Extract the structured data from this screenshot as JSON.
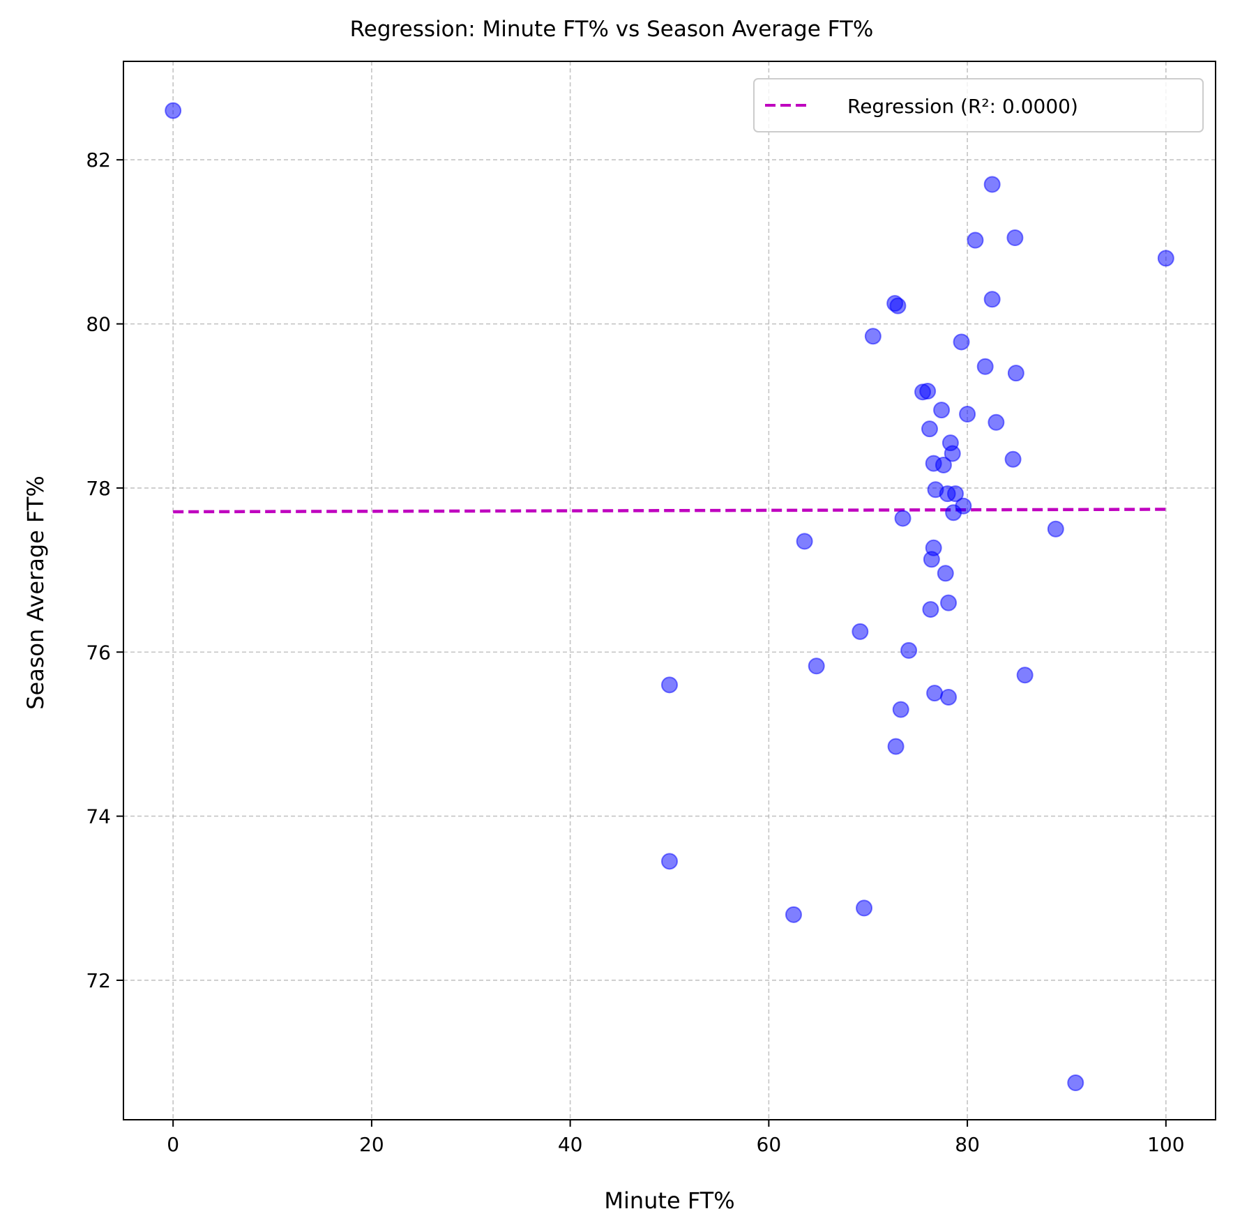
{
  "chart_data": {
    "type": "scatter",
    "title": "Regression: Minute FT% vs Season Average FT%",
    "xlabel": "Minute FT%",
    "ylabel": "Season Average FT%",
    "xlim": [
      -5,
      105
    ],
    "ylim": [
      70.3,
      83.2
    ],
    "xticks": [
      0,
      20,
      40,
      60,
      80,
      100
    ],
    "yticks": [
      72,
      74,
      76,
      78,
      80,
      82
    ],
    "grid": true,
    "legend_position": "top-right",
    "legend": [
      "Regression (R²: 0.0000)"
    ],
    "colors": {
      "points": "#0000ff",
      "regression": "#bf00bf",
      "grid": "#b0b0b0"
    },
    "series": [
      {
        "type": "scatter",
        "points": [
          [
            0.0,
            82.6
          ],
          [
            50.0,
            75.6
          ],
          [
            50.0,
            73.45
          ],
          [
            62.5,
            72.8
          ],
          [
            63.6,
            77.35
          ],
          [
            64.8,
            75.83
          ],
          [
            69.2,
            76.25
          ],
          [
            69.6,
            72.88
          ],
          [
            70.5,
            79.85
          ],
          [
            72.7,
            80.25
          ],
          [
            73.0,
            80.22
          ],
          [
            72.8,
            74.85
          ],
          [
            73.3,
            75.3
          ],
          [
            73.5,
            77.63
          ],
          [
            74.1,
            76.02
          ],
          [
            75.5,
            79.17
          ],
          [
            76.0,
            79.18
          ],
          [
            76.2,
            78.72
          ],
          [
            76.3,
            76.52
          ],
          [
            76.4,
            77.13
          ],
          [
            76.6,
            77.27
          ],
          [
            76.6,
            78.3
          ],
          [
            76.7,
            75.5
          ],
          [
            76.8,
            77.98
          ],
          [
            77.4,
            78.95
          ],
          [
            77.6,
            78.28
          ],
          [
            77.8,
            76.96
          ],
          [
            78.0,
            77.93
          ],
          [
            78.1,
            76.6
          ],
          [
            78.1,
            75.45
          ],
          [
            78.3,
            78.55
          ],
          [
            78.5,
            78.42
          ],
          [
            78.6,
            77.7
          ],
          [
            78.8,
            77.93
          ],
          [
            79.4,
            79.78
          ],
          [
            79.6,
            77.78
          ],
          [
            80.0,
            78.9
          ],
          [
            80.8,
            81.02
          ],
          [
            81.8,
            79.48
          ],
          [
            82.5,
            80.3
          ],
          [
            82.5,
            81.7
          ],
          [
            82.9,
            78.8
          ],
          [
            84.6,
            78.35
          ],
          [
            84.8,
            81.05
          ],
          [
            84.9,
            79.4
          ],
          [
            85.8,
            75.72
          ],
          [
            88.9,
            77.5
          ],
          [
            90.9,
            70.75
          ],
          [
            100.0,
            80.8
          ]
        ]
      },
      {
        "name": "Regression (R²: 0.0000)",
        "type": "line",
        "style": "dashed",
        "x": [
          0,
          100
        ],
        "y": [
          77.71,
          77.74
        ]
      }
    ]
  }
}
